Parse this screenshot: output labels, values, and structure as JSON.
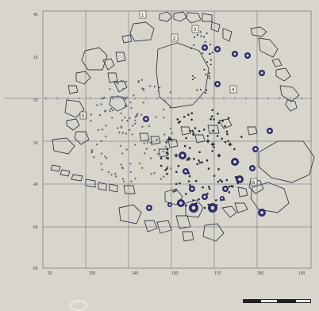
{
  "diagram": {
    "type": "archaeological site plan (stone circle / hut plan)",
    "colors": {
      "paper": "#d8d6cc",
      "grid": "#5c5c72",
      "stone": "#3a3a4a",
      "postHoleFill": "#2b2a6e",
      "smallDot": "#2a2a3a"
    },
    "y_axis_labels": [
      "45",
      "10",
      "20",
      "30",
      "40",
      "50",
      "60"
    ],
    "x_axis_labels": [
      "20",
      "130",
      "140",
      "150",
      "170",
      "180",
      "190"
    ],
    "side_label": "",
    "box_labels": [
      "1",
      "2",
      "3",
      "4",
      "5",
      "6"
    ],
    "legend": {
      "scale_bar": "scale bar"
    }
  }
}
